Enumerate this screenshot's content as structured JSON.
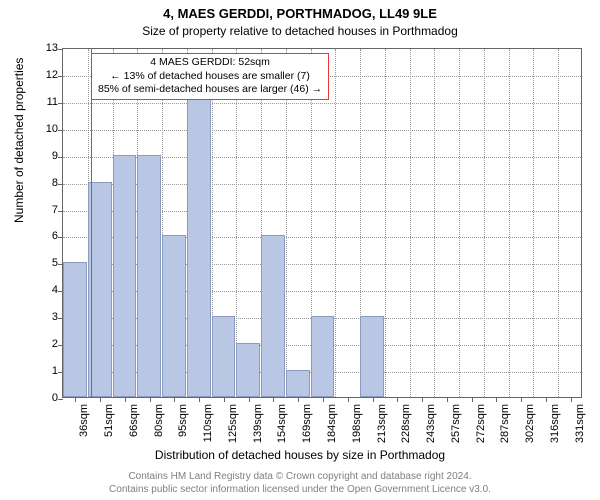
{
  "titles": {
    "main": "4, MAES GERDDI, PORTHMADOG, LL49 9LE",
    "sub": "Size of property relative to detached houses in Porthmadog"
  },
  "chart": {
    "type": "bar",
    "y_label": "Number of detached properties",
    "x_label": "Distribution of detached houses by size in Porthmadog",
    "ylim": [
      0,
      13
    ],
    "y_ticks": [
      0,
      1,
      2,
      3,
      4,
      5,
      6,
      7,
      8,
      9,
      10,
      11,
      12,
      13
    ],
    "bar_color": "#b9c7e4",
    "bar_border_color": "#8a9bc0",
    "grid_color": "#999999",
    "ref_line_color": "#e83a3a",
    "ref_line_category_index": 1,
    "ref_line_offset_within": 0.15,
    "background_color": "#ffffff",
    "categories": [
      "36sqm",
      "51sqm",
      "66sqm",
      "80sqm",
      "95sqm",
      "110sqm",
      "125sqm",
      "139sqm",
      "154sqm",
      "169sqm",
      "184sqm",
      "198sqm",
      "213sqm",
      "228sqm",
      "243sqm",
      "257sqm",
      "272sqm",
      "287sqm",
      "302sqm",
      "316sqm",
      "331sqm"
    ],
    "values": [
      5,
      8,
      9,
      9,
      6,
      12,
      3,
      2,
      6,
      1,
      3,
      0,
      3,
      0,
      0,
      0,
      0,
      0,
      0,
      0,
      0
    ]
  },
  "annotation": {
    "line1": "4 MAES GERDDI: 52sqm",
    "line2": "← 13% of detached houses are smaller (7)",
    "line3": "85% of semi-detached houses are larger (46) →"
  },
  "footer": {
    "line1": "Contains HM Land Registry data © Crown copyright and database right 2024.",
    "line2": "Contains public sector information licensed under the Open Government Licence v3.0."
  },
  "fonts": {
    "title_size": 13,
    "subtitle_size": 12,
    "axis_label_size": 12,
    "tick_size": 11,
    "annotation_size": 10.5,
    "footer_size": 10
  }
}
